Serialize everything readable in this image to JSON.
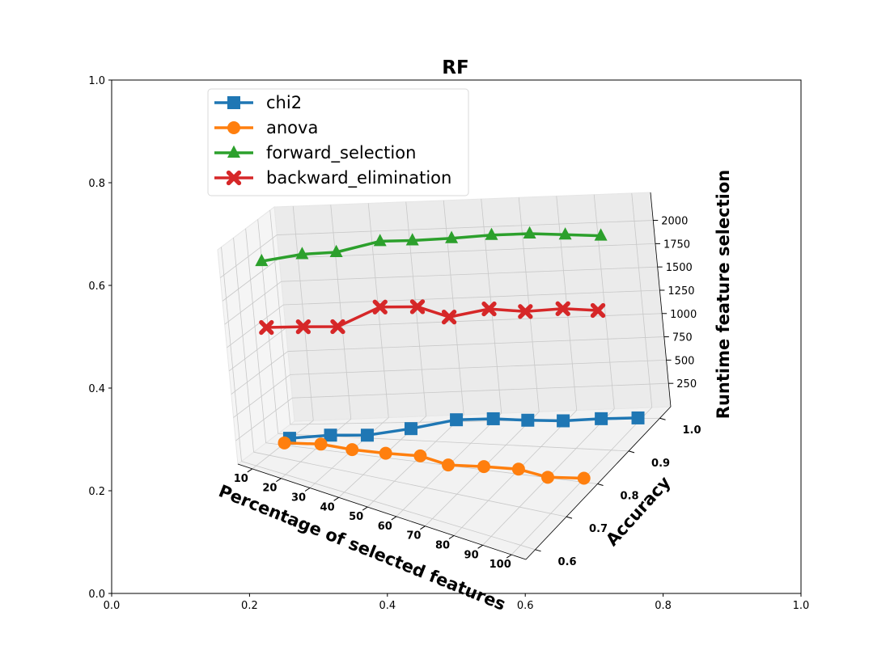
{
  "chart_data": {
    "type": "line",
    "projection": "3d",
    "title": "RF",
    "xlabel": "Percentage of selected features",
    "ylabel": "Accuracy",
    "zlabel": "Runtime feature selection",
    "x_ticks": [
      "10",
      "20",
      "30",
      "40",
      "50",
      "60",
      "70",
      "80",
      "90",
      "100"
    ],
    "y_ticks": [
      "0.6",
      "0.7",
      "0.8",
      "0.9",
      "1.0"
    ],
    "z_ticks": [
      "250",
      "500",
      "750",
      "1000",
      "1250",
      "1500",
      "1750",
      "2000"
    ],
    "background_axis": {
      "x_ticks": [
        "0.0",
        "0.2",
        "0.4",
        "0.6",
        "0.8",
        "1.0"
      ],
      "y_ticks": [
        "0.0",
        "0.2",
        "0.4",
        "0.6",
        "0.8",
        "1.0"
      ]
    },
    "legend_position": "upper-left",
    "grid": true,
    "series": [
      {
        "name": "chi2",
        "color": "#1f77b4",
        "marker": "square",
        "x": [
          10,
          20,
          30,
          40,
          50,
          60,
          70,
          80,
          90,
          100
        ],
        "y": [
          0.855,
          0.9,
          0.91,
          0.955,
          1.0,
          1.0,
          0.99,
          0.985,
          0.99,
          0.99
        ],
        "z": [
          10,
          12,
          14,
          16,
          20,
          24,
          28,
          32,
          36,
          40
        ]
      },
      {
        "name": "anova",
        "color": "#ff7f0e",
        "marker": "circle",
        "x": [
          10,
          20,
          30,
          40,
          50,
          60,
          70,
          80,
          90,
          100
        ],
        "y": [
          0.815,
          0.835,
          0.82,
          0.82,
          0.825,
          0.8,
          0.81,
          0.815,
          0.8,
          0.81
        ],
        "z": [
          5,
          5,
          5,
          5,
          5,
          5,
          5,
          5,
          5,
          5
        ]
      },
      {
        "name": "forward_selection",
        "color": "#2ca02c",
        "marker": "triangle",
        "x": [
          10,
          20,
          30,
          40,
          50,
          60,
          70,
          80,
          90,
          100
        ],
        "y": [
          0.775,
          0.83,
          0.835,
          0.89,
          0.88,
          0.9,
          0.92,
          0.93,
          0.93,
          0.93
        ],
        "z": [
          2000,
          2050,
          2100,
          2150,
          2200,
          2200,
          2200,
          2200,
          2200,
          2200
        ]
      },
      {
        "name": "backward_elimination",
        "color": "#d62728",
        "marker": "x",
        "x": [
          10,
          20,
          30,
          40,
          50,
          60,
          70,
          80,
          90,
          100
        ],
        "y": [
          0.765,
          0.795,
          0.805,
          0.86,
          0.875,
          0.86,
          0.885,
          0.89,
          0.9,
          0.9
        ],
        "z": [
          1300,
          1320,
          1350,
          1500,
          1500,
          1450,
          1500,
          1480,
          1500,
          1500
        ]
      }
    ]
  }
}
